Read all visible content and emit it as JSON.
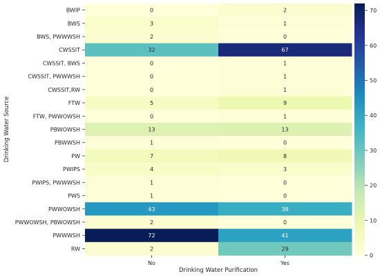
{
  "chart_data": {
    "type": "heatmap",
    "xlabel": "Drinking Water Purification",
    "ylabel": "Drinking Water Source",
    "x_categories": [
      "No",
      "Yes"
    ],
    "y_categories": [
      "BWIP",
      "BWS",
      "BWS, PWWWSH",
      "CWSSIT",
      "CWSSIT, BWS",
      "CWSSIT, PWWWSH",
      "CWSSIT,RW",
      "FTW",
      "FTW, PWWOWSH",
      "PBWOWSH",
      "PBWWSH",
      "PW",
      "PWIPS",
      "PWIPS, PWWWSH",
      "PWS",
      "PWWOWSH",
      "PWWOWSH, PBWOWSH",
      "PWWWSH",
      "RW"
    ],
    "values": [
      [
        0,
        2
      ],
      [
        3,
        1
      ],
      [
        2,
        0
      ],
      [
        32,
        67
      ],
      [
        0,
        1
      ],
      [
        0,
        1
      ],
      [
        0,
        1
      ],
      [
        5,
        9
      ],
      [
        0,
        1
      ],
      [
        13,
        13
      ],
      [
        1,
        0
      ],
      [
        7,
        8
      ],
      [
        4,
        3
      ],
      [
        1,
        0
      ],
      [
        1,
        0
      ],
      [
        43,
        38
      ],
      [
        2,
        0
      ],
      [
        72,
        41
      ],
      [
        2,
        29
      ]
    ],
    "colormap": "YlGnBu",
    "colorbar": {
      "range": [
        0,
        72
      ],
      "ticks": [
        0,
        10,
        20,
        30,
        40,
        50,
        60,
        70
      ]
    },
    "annotations": true,
    "grid": false
  }
}
